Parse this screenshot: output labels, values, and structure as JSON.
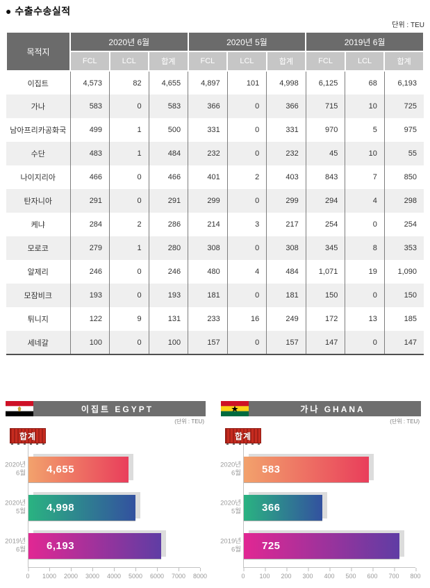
{
  "page": {
    "title": "● 수출수송실적",
    "unit": "단위 : TEU"
  },
  "table": {
    "dest_header": "목적지",
    "col_groups": [
      "2020년 6월",
      "2020년 5월",
      "2019년 6월"
    ],
    "sub_cols": [
      "FCL",
      "LCL",
      "합계"
    ],
    "rows": [
      {
        "name": "이집트",
        "values": [
          "4,573",
          "82",
          "4,655",
          "4,897",
          "101",
          "4,998",
          "6,125",
          "68",
          "6,193"
        ]
      },
      {
        "name": "가나",
        "values": [
          "583",
          "0",
          "583",
          "366",
          "0",
          "366",
          "715",
          "10",
          "725"
        ]
      },
      {
        "name": "남아프리카공화국",
        "values": [
          "499",
          "1",
          "500",
          "331",
          "0",
          "331",
          "970",
          "5",
          "975"
        ]
      },
      {
        "name": "수단",
        "values": [
          "483",
          "1",
          "484",
          "232",
          "0",
          "232",
          "45",
          "10",
          "55"
        ]
      },
      {
        "name": "나이지리아",
        "values": [
          "466",
          "0",
          "466",
          "401",
          "2",
          "403",
          "843",
          "7",
          "850"
        ]
      },
      {
        "name": "탄자니아",
        "values": [
          "291",
          "0",
          "291",
          "299",
          "0",
          "299",
          "294",
          "4",
          "298"
        ]
      },
      {
        "name": "케냐",
        "values": [
          "284",
          "2",
          "286",
          "214",
          "3",
          "217",
          "254",
          "0",
          "254"
        ]
      },
      {
        "name": "모로코",
        "values": [
          "279",
          "1",
          "280",
          "308",
          "0",
          "308",
          "345",
          "8",
          "353"
        ]
      },
      {
        "name": "알제리",
        "values": [
          "246",
          "0",
          "246",
          "480",
          "4",
          "484",
          "1,071",
          "19",
          "1,090"
        ]
      },
      {
        "name": "모잠비크",
        "values": [
          "193",
          "0",
          "193",
          "181",
          "0",
          "181",
          "150",
          "0",
          "150"
        ]
      },
      {
        "name": "튀니지",
        "values": [
          "122",
          "9",
          "131",
          "233",
          "16",
          "249",
          "172",
          "13",
          "185"
        ]
      },
      {
        "name": "세네갈",
        "values": [
          "100",
          "0",
          "100",
          "157",
          "0",
          "157",
          "147",
          "0",
          "147"
        ]
      }
    ]
  },
  "chart_data": [
    {
      "type": "bar",
      "orientation": "horizontal",
      "title": "이집트 EGYPT",
      "unit": "(단위 : TEU)",
      "legend": "합계",
      "flag": "egypt-flag",
      "categories": [
        [
          "2020년",
          "6월"
        ],
        [
          "2020년",
          "5월"
        ],
        [
          "2019년",
          "6월"
        ]
      ],
      "values": [
        4655,
        4998,
        6193
      ],
      "value_labels": [
        "4,655",
        "4,998",
        "6,193"
      ],
      "xlim": [
        0,
        8000
      ],
      "ticks": [
        "0",
        "1000",
        "2000",
        "3000",
        "4000",
        "5000",
        "6000",
        "7000",
        "8000"
      ],
      "bar_gradients": [
        [
          "#f2a26c",
          "#e93e5b"
        ],
        [
          "#2ab381",
          "#33519f"
        ],
        [
          "#e12793",
          "#5f3da4"
        ]
      ]
    },
    {
      "type": "bar",
      "orientation": "horizontal",
      "title": "가나 GHANA",
      "unit": "(단위 : TEU)",
      "legend": "합계",
      "flag": "ghana-flag",
      "categories": [
        [
          "2020년",
          "6월"
        ],
        [
          "2020년",
          "5월"
        ],
        [
          "2019년",
          "6월"
        ]
      ],
      "values": [
        583,
        366,
        725
      ],
      "value_labels": [
        "583",
        "366",
        "725"
      ],
      "xlim": [
        0,
        800
      ],
      "ticks": [
        "0",
        "100",
        "200",
        "300",
        "400",
        "500",
        "600",
        "700",
        "800"
      ],
      "bar_gradients": [
        [
          "#f2a26c",
          "#e93e5b"
        ],
        [
          "#2ab381",
          "#33519f"
        ],
        [
          "#e12793",
          "#5f3da4"
        ]
      ]
    }
  ],
  "colors": {
    "header_bg": "#6b6b6b",
    "subheader_bg": "#c6c6c6",
    "row_alt": "#efefef",
    "grid_line": "#7d7d7d",
    "table_bottom": "#4f4f4f",
    "chart_titlebar_bg": "#6e6e6e",
    "badge_red": "#c62b1f",
    "axis_line": "#c2c2c2",
    "tick_text": "#999999",
    "shadow": "#dcdcdc",
    "flag_egypt_red": "#ce1126",
    "flag_egypt_gold": "#c7a13e",
    "flag_ghana_red": "#ce1126",
    "flag_ghana_gold": "#fcd116",
    "flag_ghana_green": "#006b3f"
  }
}
